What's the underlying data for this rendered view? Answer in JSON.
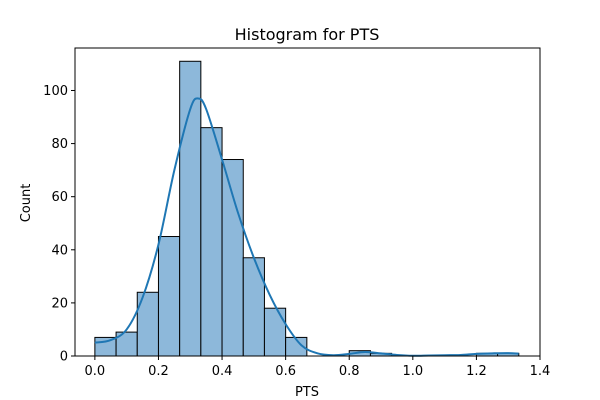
{
  "chart_data": {
    "type": "bar",
    "title": "Histogram for PTS",
    "xlabel": "PTS",
    "ylabel": "Count",
    "xlim": [
      -0.0625,
      1.4
    ],
    "ylim": [
      0,
      116
    ],
    "xticks": [
      0.0,
      0.2,
      0.4,
      0.6,
      0.8,
      1.0,
      1.2,
      1.4
    ],
    "xtick_labels": [
      "0.0",
      "0.2",
      "0.4",
      "0.6",
      "0.8",
      "1.0",
      "1.2",
      "1.4"
    ],
    "yticks": [
      0,
      20,
      40,
      60,
      80,
      100
    ],
    "ytick_labels": [
      "0",
      "20",
      "40",
      "60",
      "80",
      "100"
    ],
    "grid": false,
    "bar_color": "#8db8da",
    "bar_edge_color": "#000000",
    "kde_color": "#1f77b4",
    "bins": [
      {
        "x0": 0.0,
        "x1": 0.0667,
        "count": 7
      },
      {
        "x0": 0.0667,
        "x1": 0.1333,
        "count": 9
      },
      {
        "x0": 0.1333,
        "x1": 0.2,
        "count": 24
      },
      {
        "x0": 0.2,
        "x1": 0.2667,
        "count": 45
      },
      {
        "x0": 0.2667,
        "x1": 0.3333,
        "count": 111
      },
      {
        "x0": 0.3333,
        "x1": 0.4,
        "count": 86
      },
      {
        "x0": 0.4,
        "x1": 0.4667,
        "count": 74
      },
      {
        "x0": 0.4667,
        "x1": 0.5333,
        "count": 37
      },
      {
        "x0": 0.5333,
        "x1": 0.6,
        "count": 18
      },
      {
        "x0": 0.6,
        "x1": 0.6667,
        "count": 7
      },
      {
        "x0": 0.6667,
        "x1": 0.7333,
        "count": 0
      },
      {
        "x0": 0.7333,
        "x1": 0.8,
        "count": 0
      },
      {
        "x0": 0.8,
        "x1": 0.8667,
        "count": 2
      },
      {
        "x0": 0.8667,
        "x1": 0.9333,
        "count": 1
      },
      {
        "x0": 0.9333,
        "x1": 1.0,
        "count": 0
      },
      {
        "x0": 1.0,
        "x1": 1.0667,
        "count": 0
      },
      {
        "x0": 1.0667,
        "x1": 1.1333,
        "count": 0
      },
      {
        "x0": 1.1333,
        "x1": 1.2,
        "count": 0
      },
      {
        "x0": 1.2,
        "x1": 1.2667,
        "count": 1
      },
      {
        "x0": 1.2667,
        "x1": 1.3333,
        "count": 1
      }
    ],
    "kde": {
      "x": [
        0.0,
        0.05,
        0.1,
        0.15,
        0.2,
        0.25,
        0.3,
        0.325,
        0.35,
        0.4,
        0.45,
        0.5,
        0.55,
        0.6,
        0.65,
        0.7,
        0.75,
        0.8,
        0.85,
        0.9,
        0.95,
        1.0,
        1.05,
        1.1,
        1.15,
        1.2,
        1.25,
        1.3,
        1.333
      ],
      "y": [
        5,
        6,
        10,
        22,
        42,
        70,
        93,
        97,
        93,
        74,
        54,
        37,
        23,
        12,
        4,
        1,
        0.3,
        0.8,
        1.5,
        1,
        0.4,
        0.1,
        0.2,
        0.3,
        0.4,
        0.8,
        1.0,
        1.1,
        0.9
      ]
    }
  }
}
